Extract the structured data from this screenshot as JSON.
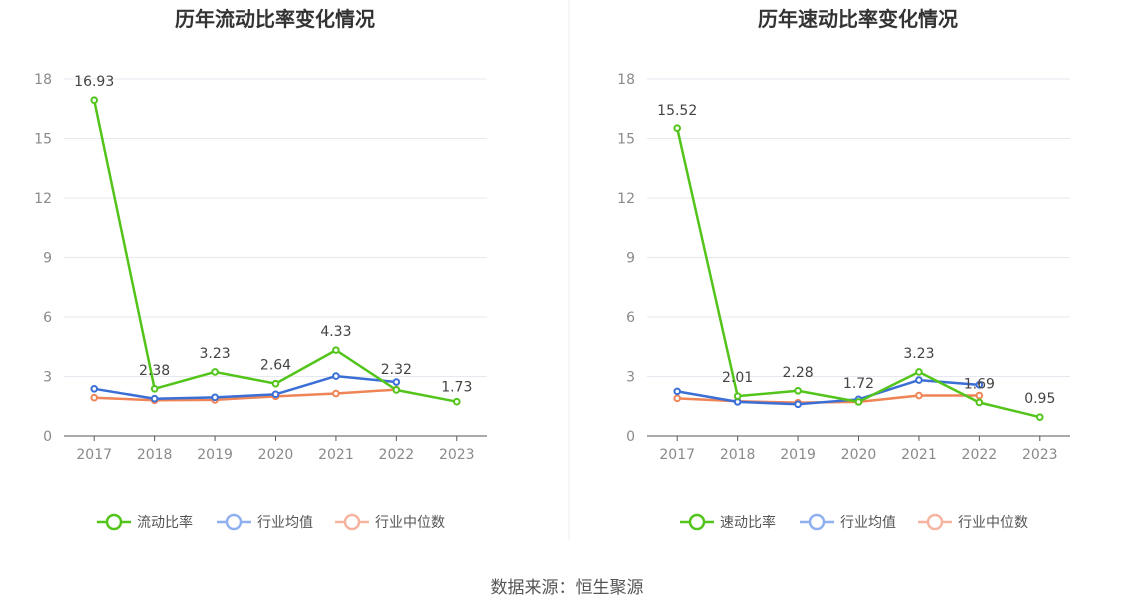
{
  "source_label": "数据来源：恒生聚源",
  "colors": {
    "company": "#52c41a",
    "industry_avg": "#3b6fd6",
    "industry_median": "#ef8457",
    "legend_company": "#52c41a",
    "legend_avg": "#8fb0f0",
    "legend_median": "#f6b4a0",
    "grid": "#e6e8ef",
    "axis": "#555555"
  },
  "chart_data": [
    {
      "type": "line",
      "title": "历年流动比率变化情况",
      "categories": [
        "2017",
        "2018",
        "2019",
        "2020",
        "2021",
        "2022",
        "2023"
      ],
      "ylim": [
        0,
        18
      ],
      "yticks": [
        0,
        3,
        6,
        9,
        12,
        15,
        18
      ],
      "grid": true,
      "legend_position": "bottom",
      "series": [
        {
          "name": "流动比率",
          "values": [
            16.93,
            2.38,
            3.23,
            2.64,
            4.33,
            2.32,
            1.73
          ],
          "labels": [
            "16.93",
            "2.38",
            "3.23",
            "2.64",
            "4.33",
            "2.32",
            "1.73"
          ]
        },
        {
          "name": "行业均值",
          "values": [
            2.38,
            1.88,
            1.95,
            2.1,
            3.02,
            2.72,
            null
          ]
        },
        {
          "name": "行业中位数",
          "values": [
            1.93,
            1.8,
            1.82,
            2.0,
            2.14,
            2.34,
            null
          ]
        }
      ]
    },
    {
      "type": "line",
      "title": "历年速动比率变化情况",
      "categories": [
        "2017",
        "2018",
        "2019",
        "2020",
        "2021",
        "2022",
        "2023"
      ],
      "ylim": [
        0,
        18
      ],
      "yticks": [
        0,
        3,
        6,
        9,
        12,
        15,
        18
      ],
      "grid": true,
      "legend_position": "bottom",
      "series": [
        {
          "name": "速动比率",
          "values": [
            15.52,
            2.01,
            2.28,
            1.72,
            3.23,
            1.69,
            0.95
          ],
          "labels": [
            "15.52",
            "2.01",
            "2.28",
            "1.72",
            "3.23",
            "1.69",
            "0.95"
          ]
        },
        {
          "name": "行业均值",
          "values": [
            2.25,
            1.72,
            1.6,
            1.85,
            2.82,
            2.58,
            null
          ]
        },
        {
          "name": "行业中位数",
          "values": [
            1.9,
            1.75,
            1.68,
            1.72,
            2.04,
            2.04,
            null
          ]
        }
      ]
    }
  ]
}
